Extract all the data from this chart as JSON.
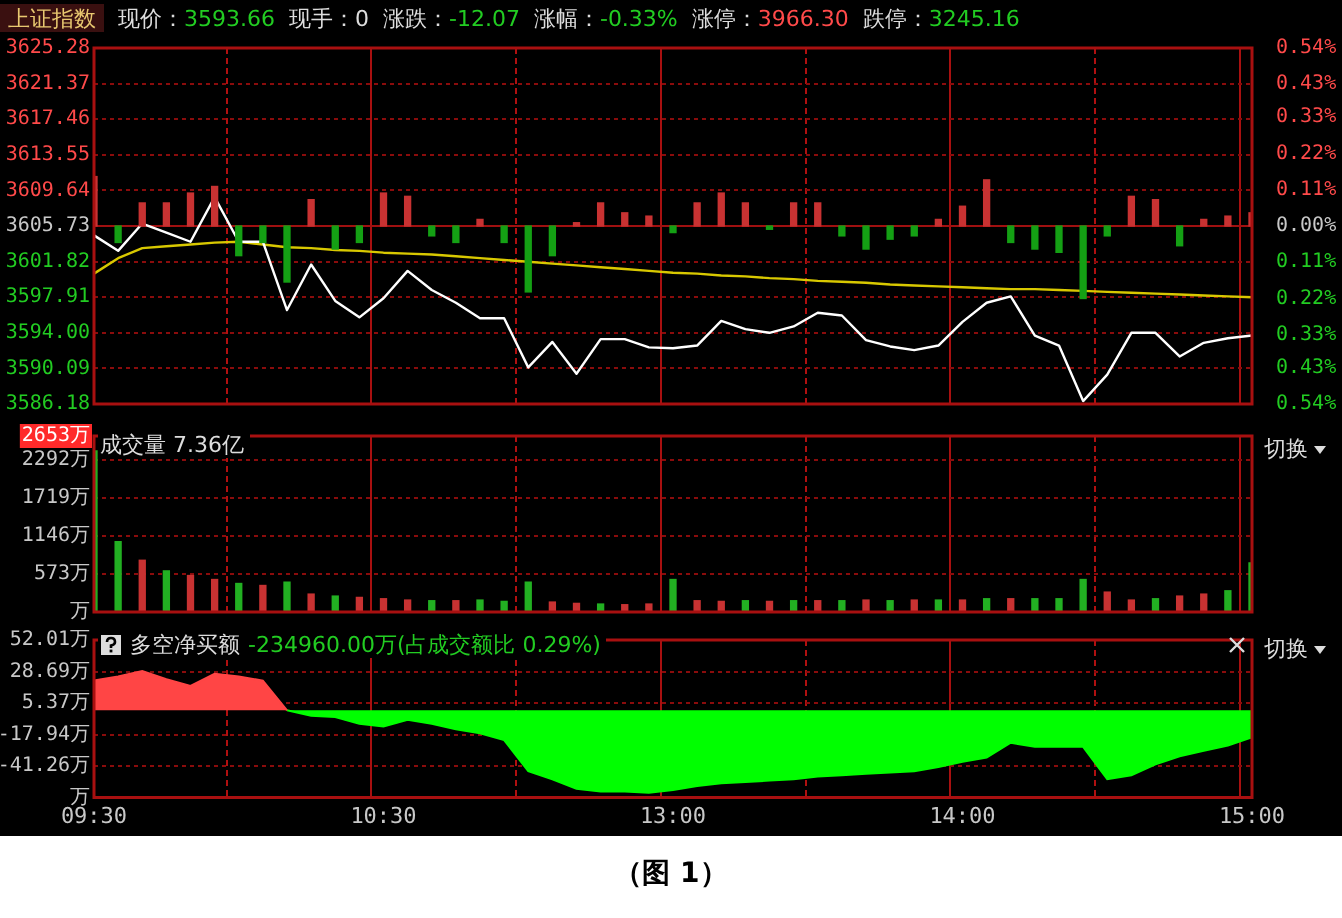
{
  "chart_data": [
    {
      "type": "line",
      "title": "上证指数",
      "annotations": [
        "现价：3593.66",
        "现手：0",
        "涨跌：-12.07",
        "涨幅：-0.33%",
        "涨停：3966.30",
        "跌停：3245.16"
      ],
      "categories": [
        null,
        null,
        null,
        null,
        null,
        null,
        null,
        null,
        null,
        null,
        null,
        null,
        null,
        null,
        null,
        null,
        null,
        null,
        null,
        null,
        null,
        null,
        null,
        null,
        null,
        null,
        null,
        null,
        null,
        null,
        null,
        null,
        null,
        null,
        null,
        null,
        null,
        null,
        null,
        null,
        null,
        null,
        null,
        null,
        null,
        null,
        null,
        null,
        null
      ],
      "ylim": [
        3586.18,
        3625.28
      ],
      "yticks": [
        3586.18,
        3590.09,
        {
          "value": 3594,
          "label": "3594.00"
        },
        3597.91,
        3601.82,
        3605.73,
        3609.64,
        3613.55,
        3617.46,
        3621.37,
        3625.28
      ],
      "y2lim": [
        -0.54,
        0.54
      ],
      "y2ticks": [
        {
          "value": -0.54,
          "label": "0.54%"
        },
        {
          "value": -0.43,
          "label": "0.43%"
        },
        {
          "value": -0.33,
          "label": "0.33%"
        },
        {
          "value": -0.22,
          "label": "0.22%"
        },
        {
          "value": -0.11,
          "label": "0.11%"
        },
        {
          "value": 0,
          "label": "0.00%"
        },
        {
          "value": 0.11,
          "label": "0.11%"
        },
        {
          "value": 0.22,
          "label": "0.22%"
        },
        {
          "value": 0.33,
          "label": "0.33%"
        },
        {
          "value": 0.43,
          "label": "0.43%"
        },
        {
          "value": 0.54,
          "label": "0.54%"
        }
      ],
      "ref_lines": [
        {
          "axis": "y",
          "value": 3605.73,
          "color": "#a01010"
        }
      ],
      "grid": true,
      "tick_labels": "y",
      "series": [
        {
          "type": "bar",
          "axis": "y2",
          "color": "#c83232",
          "values": [
            0.15,
            null,
            0.07,
            0.07,
            0.1,
            0.12,
            null,
            null,
            null,
            0.08,
            null,
            null,
            0.1,
            0.09,
            null,
            null,
            0.02,
            null,
            null,
            null,
            0.01,
            0.07,
            0.04,
            0.03,
            null,
            0.07,
            0.1,
            0.07,
            null,
            0.07,
            0.07,
            null,
            null,
            null,
            null,
            0.02,
            0.06,
            0.14,
            null,
            null,
            null,
            null,
            null,
            0.09,
            0.08,
            null,
            0.02,
            0.03,
            0.04
          ]
        },
        {
          "type": "bar",
          "axis": "y2",
          "color": "#14a014",
          "values": [
            null,
            -0.05,
            null,
            null,
            null,
            null,
            -0.09,
            -0.05,
            -0.17,
            null,
            -0.07,
            -0.05,
            null,
            null,
            -0.03,
            -0.05,
            null,
            -0.05,
            -0.2,
            -0.09,
            null,
            null,
            null,
            null,
            -0.02,
            null,
            null,
            null,
            -0.01,
            null,
            null,
            -0.03,
            -0.07,
            -0.04,
            -0.03,
            null,
            null,
            null,
            -0.05,
            -0.07,
            -0.08,
            -0.22,
            -0.03,
            null,
            null,
            -0.06,
            null,
            null,
            null
          ]
        },
        {
          "type": "line",
          "color": "#ffffff",
          "values": [
            3604.7,
            3603.0,
            3606.0,
            3605.0,
            3604.0,
            3608.9,
            3604.0,
            3604.0,
            3596.5,
            3601.5,
            3597.5,
            3595.7,
            3597.8,
            3600.8,
            3598.7,
            3597.3,
            3595.6,
            3595.6,
            3590.2,
            3593.0,
            3589.5,
            3593.3,
            3593.3,
            3592.4,
            3592.3,
            3592.6,
            3595.3,
            3594.4,
            3594.0,
            3594.7,
            3596.2,
            3595.9,
            3593.2,
            3592.5,
            3592.1,
            3592.6,
            3595.2,
            3597.3,
            3598.0,
            3593.7,
            3592.6,
            3586.5,
            3589.4,
            3594.0,
            3594.0,
            3591.4,
            3592.9,
            3593.4,
            3593.7
          ]
        },
        {
          "type": "line",
          "color": "#d8c800",
          "values": [
            3600.5,
            3602.2,
            3603.3,
            3603.5,
            3603.7,
            3603.9,
            3604.0,
            3603.7,
            3603.4,
            3603.3,
            3603.1,
            3603.0,
            3602.8,
            3602.7,
            3602.6,
            3602.4,
            3602.2,
            3602.0,
            3601.8,
            3601.6,
            3601.4,
            3601.2,
            3601.0,
            3600.8,
            3600.6,
            3600.5,
            3600.3,
            3600.2,
            3600.0,
            3599.9,
            3599.7,
            3599.6,
            3599.5,
            3599.3,
            3599.2,
            3599.1,
            3599.0,
            3598.9,
            3598.8,
            3598.8,
            3598.7,
            3598.6,
            3598.5,
            3598.4,
            3598.3,
            3598.2,
            3598.1,
            3598.0,
            3597.9
          ]
        }
      ]
    },
    {
      "type": "bar",
      "title": "成交量 7.36亿",
      "annotations": [
        "切换"
      ],
      "categories": [
        null,
        null,
        null,
        null,
        null,
        null,
        null,
        null,
        null,
        null,
        null,
        null,
        null,
        null,
        null,
        null,
        null,
        null,
        null,
        null,
        null,
        null,
        null,
        null,
        null,
        null,
        null,
        null,
        null,
        null,
        null,
        null,
        null,
        null,
        null,
        null,
        null,
        null,
        null,
        null,
        null,
        null,
        null,
        null,
        null,
        null,
        null,
        null,
        null
      ],
      "ylim": [
        0,
        2653
      ],
      "yticks": [
        {
          "value": 0,
          "label": "万"
        },
        {
          "value": 573,
          "label": "573万"
        },
        {
          "value": 1146,
          "label": "1146万"
        },
        {
          "value": 1719,
          "label": "1719万"
        },
        {
          "value": 2292,
          "label": "2292万"
        },
        {
          "value": 2653,
          "label": "2653万"
        }
      ],
      "grid": true,
      "tick_labels": "y",
      "values": [
        2430,
        1060,
        780,
        620,
        550,
        490,
        430,
        400,
        450,
        270,
        240,
        220,
        200,
        180,
        170,
        170,
        180,
        160,
        450,
        150,
        130,
        120,
        110,
        120,
        490,
        170,
        160,
        170,
        160,
        170,
        170,
        170,
        180,
        170,
        180,
        180,
        180,
        200,
        200,
        200,
        200,
        490,
        300,
        180,
        200,
        240,
        270,
        320,
        740
      ],
      "colors": [
        "#22b022",
        "#22b022",
        "#c83232",
        "#22b022",
        "#c83232",
        "#c83232",
        "#22b022",
        "#c83232",
        "#22b022",
        "#c83232",
        "#22b022",
        "#c83232",
        "#c83232",
        "#c83232",
        "#22b022",
        "#c83232",
        "#22b022",
        "#22b022",
        "#22b022",
        "#c83232",
        "#c83232",
        "#22b022",
        "#c83232",
        "#c83232",
        "#22b022",
        "#c83232",
        "#c83232",
        "#22b022",
        "#c83232",
        "#22b022",
        "#c83232",
        "#22b022",
        "#c83232",
        "#22b022",
        "#c83232",
        "#22b022",
        "#c83232",
        "#22b022",
        "#c83232",
        "#22b022",
        "#22b022",
        "#22b022",
        "#c83232",
        "#c83232",
        "#22b022",
        "#c83232",
        "#c83232",
        "#22b022",
        "#22b022"
      ]
    },
    {
      "type": "area",
      "title": "多空净买额",
      "subtitle": "-234960.00万(占成交额比 0.29%)",
      "annotations": [
        "切换",
        "（图 1）"
      ],
      "categories": [
        "09:30",
        null,
        null,
        null,
        null,
        null,
        null,
        null,
        null,
        null,
        null,
        null,
        "10:30",
        null,
        null,
        null,
        null,
        null,
        null,
        null,
        null,
        null,
        null,
        null,
        "13:00",
        null,
        null,
        null,
        null,
        null,
        null,
        null,
        null,
        null,
        null,
        null,
        "14:00",
        null,
        null,
        null,
        null,
        null,
        null,
        null,
        null,
        null,
        null,
        null,
        "15:00"
      ],
      "ylim": [
        -64.58,
        52.01
      ],
      "yticks": [
        {
          "value": -64.58,
          "label": "万"
        },
        {
          "value": -41.26,
          "label": "-41.26万"
        },
        {
          "value": -17.94,
          "label": "-17.94万"
        },
        {
          "value": 5.37,
          "label": "5.37万"
        },
        {
          "value": 28.69,
          "label": "28.69万"
        },
        {
          "value": 52.01,
          "label": "52.01万"
        }
      ],
      "grid": true,
      "series": [
        {
          "color": "#ff4545",
          "values": [
            22,
            25,
            29,
            23,
            18,
            27,
            25,
            22,
            0,
            null,
            null,
            null,
            null,
            null,
            null,
            null,
            null,
            null,
            null,
            null,
            null,
            null,
            null,
            null,
            null,
            null,
            null,
            null,
            null,
            null,
            null,
            null,
            null,
            null,
            null,
            null,
            null,
            null,
            null,
            null,
            null,
            null,
            null,
            null,
            null,
            null,
            null,
            null,
            null
          ]
        },
        {
          "color": "#00ff00",
          "values": [
            null,
            null,
            null,
            null,
            null,
            null,
            null,
            null,
            0,
            -4,
            -5,
            -10,
            -12,
            -7,
            -10,
            -14,
            -17,
            -22,
            -45,
            -51,
            -58,
            -60,
            -60,
            -61,
            -59,
            -56,
            -54,
            -53,
            -52,
            -51,
            -49,
            -48,
            -47,
            -46,
            -45,
            -42,
            -38,
            -35,
            -24,
            -27,
            -27,
            -27,
            -51,
            -48,
            -40,
            -34,
            -30,
            -26,
            -20
          ]
        }
      ]
    }
  ]
}
